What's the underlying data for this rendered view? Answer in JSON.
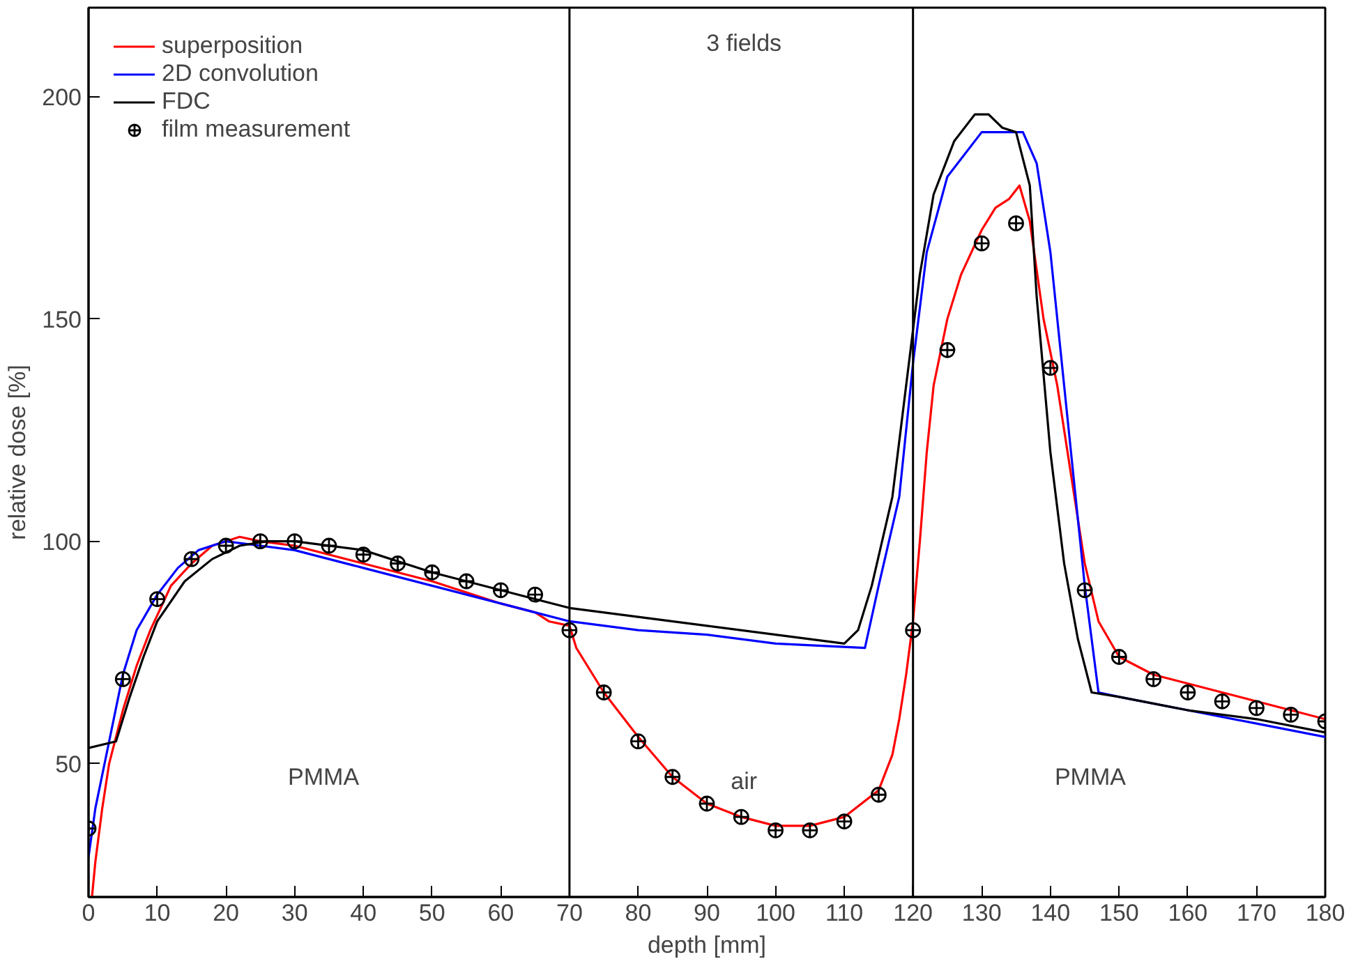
{
  "chart_data": {
    "type": "line",
    "xlabel": "depth [mm]",
    "ylabel": "relative dose [%]",
    "xlim": [
      0,
      180
    ],
    "ylim": [
      20,
      220
    ],
    "xticks": [
      0,
      10,
      20,
      30,
      40,
      50,
      60,
      70,
      80,
      90,
      100,
      110,
      120,
      130,
      140,
      150,
      160,
      170,
      180
    ],
    "yticks": [
      50,
      100,
      150,
      200
    ],
    "grid": false,
    "legend": "top left",
    "line_style": "solid",
    "series": [
      {
        "name": "superposition",
        "color": "#ff0000",
        "x": [
          0.5,
          1,
          2,
          3,
          4,
          5,
          7,
          9,
          12,
          15,
          18,
          22,
          25,
          30,
          40,
          50,
          60,
          65,
          67,
          70,
          71,
          75,
          80,
          85,
          90,
          95,
          100,
          105,
          110,
          115,
          117,
          118,
          119,
          120,
          121,
          122,
          123,
          125,
          127,
          130,
          132,
          134,
          135.5,
          137,
          139,
          141,
          143,
          145,
          147,
          150,
          155,
          160,
          165,
          170,
          175,
          180
        ],
        "values": [
          20,
          28,
          40,
          50,
          56,
          62,
          72,
          80,
          90,
          95,
          99,
          101,
          100,
          99,
          95,
          91,
          86,
          84,
          82,
          81,
          76,
          66,
          56,
          47,
          41,
          38,
          36,
          36,
          38,
          44,
          52,
          60,
          70,
          82,
          100,
          120,
          135,
          150,
          160,
          170,
          175,
          177,
          180,
          172,
          150,
          135,
          115,
          95,
          82,
          74,
          70,
          68,
          66,
          64,
          62,
          60
        ]
      },
      {
        "name": "2D convolution",
        "color": "#0000ff",
        "x": [
          0,
          1,
          3,
          5,
          7,
          10,
          13,
          16,
          20,
          25,
          30,
          40,
          50,
          60,
          70,
          80,
          90,
          100,
          113,
          115,
          118,
          120,
          122,
          125,
          130,
          136,
          138,
          140,
          142,
          145,
          147,
          150,
          160,
          170,
          180
        ],
        "values": [
          29,
          40,
          55,
          70,
          80,
          88,
          94,
          98,
          100,
          99,
          98,
          94,
          90,
          86,
          82,
          80,
          79,
          77,
          76,
          90,
          110,
          140,
          165,
          182,
          192,
          192,
          185,
          165,
          135,
          90,
          66,
          65,
          62,
          59,
          56
        ]
      },
      {
        "name": "FDC",
        "color": "#000000",
        "x": [
          0,
          4,
          6,
          8,
          10,
          14,
          18,
          22,
          26,
          30,
          40,
          50,
          60,
          70,
          80,
          90,
          100,
          110,
          112,
          114,
          117,
          119,
          121,
          123,
          126,
          129,
          131,
          133,
          135,
          137,
          138,
          140,
          142,
          144,
          146,
          150,
          160,
          170,
          180
        ],
        "values": [
          53.5,
          55,
          65,
          74,
          82,
          91,
          96,
          99,
          100,
          100,
          98,
          93,
          89,
          85,
          83,
          81,
          79,
          77,
          80,
          90,
          110,
          135,
          160,
          178,
          190,
          196,
          196,
          193,
          192,
          180,
          155,
          120,
          95,
          78,
          66,
          65,
          62,
          60,
          57
        ]
      },
      {
        "name": "film measurement",
        "type": "scatter",
        "marker": "circle",
        "color": "#000000",
        "x": [
          0,
          5,
          10,
          15,
          20,
          25,
          30,
          35,
          40,
          45,
          50,
          55,
          60,
          65,
          70,
          75,
          80,
          85,
          90,
          95,
          100,
          105,
          110,
          115,
          120,
          125,
          130,
          135,
          140,
          145,
          150,
          155,
          160,
          165,
          170,
          175,
          180
        ],
        "values": [
          35.4,
          69,
          87,
          96,
          99,
          100,
          100,
          99,
          97,
          95,
          93,
          91,
          89,
          88,
          80,
          66,
          55,
          47,
          41,
          38,
          35,
          35,
          37,
          43,
          80,
          143,
          167,
          171.5,
          139,
          89,
          74,
          69,
          66,
          64,
          62.5,
          61,
          59.5
        ]
      }
    ],
    "ref_lines": [
      {
        "axis": "x",
        "value": 70,
        "color": "#000000"
      },
      {
        "axis": "x",
        "value": 120,
        "color": "#000000"
      }
    ],
    "annotations": [
      "3 fields",
      "PMMA",
      "air",
      "PMMA"
    ]
  }
}
